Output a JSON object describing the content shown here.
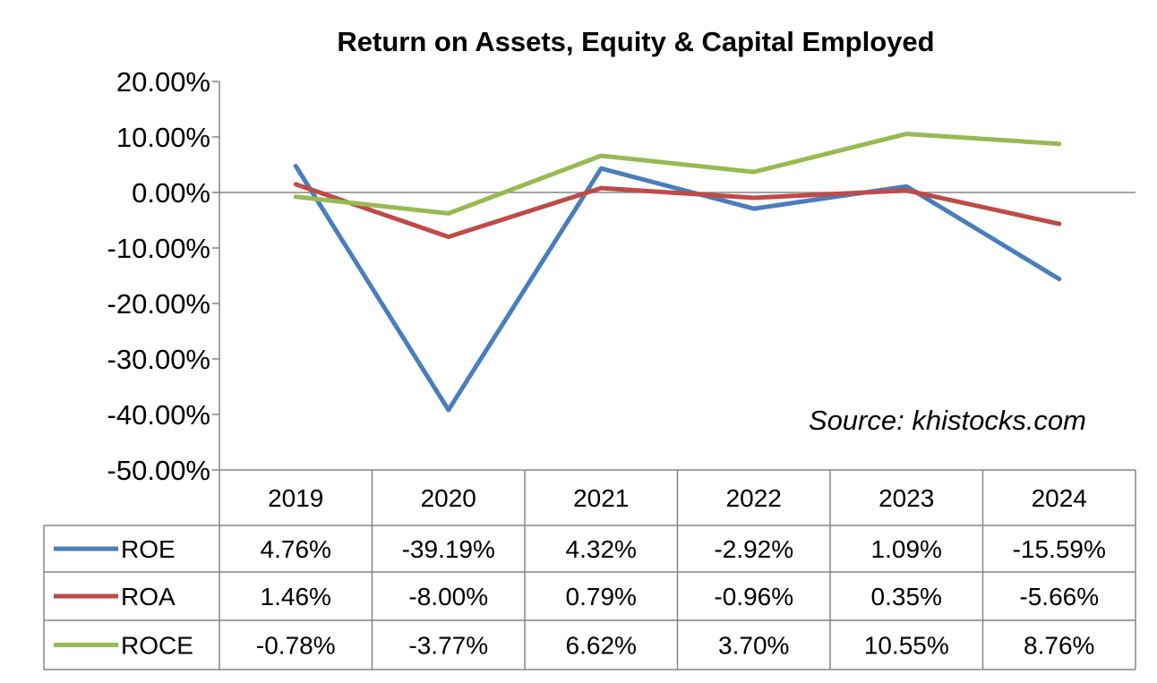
{
  "chart_data": {
    "type": "line",
    "title": "Return on Assets, Equity & Capital Employed",
    "annotation": "Source: khistocks.com",
    "categories": [
      "2019",
      "2020",
      "2021",
      "2022",
      "2023",
      "2024"
    ],
    "ylim": [
      -50,
      20
    ],
    "yticks": [
      20,
      10,
      0,
      -10,
      -20,
      -30,
      -40,
      -50
    ],
    "ytick_labels": [
      "20.00%",
      "10.00%",
      "0.00%",
      "-10.00%",
      "-20.00%",
      "-30.00%",
      "-40.00%",
      "-50.00%"
    ],
    "legend_placement": "data-table",
    "series": [
      {
        "name": "ROE",
        "color": "#4a7ebb",
        "values": [
          4.76,
          -39.19,
          4.32,
          -2.92,
          1.09,
          -15.59
        ],
        "labels": [
          "4.76%",
          "-39.19%",
          "4.32%",
          "-2.92%",
          "1.09%",
          "-15.59%"
        ]
      },
      {
        "name": "ROA",
        "color": "#be4b48",
        "values": [
          1.46,
          -8.0,
          0.79,
          -0.96,
          0.35,
          -5.66
        ],
        "labels": [
          "1.46%",
          "-8.00%",
          "0.79%",
          "-0.96%",
          "0.35%",
          "-5.66%"
        ]
      },
      {
        "name": "ROCE",
        "color": "#98b954",
        "values": [
          -0.78,
          -3.77,
          6.62,
          3.7,
          10.55,
          8.76
        ],
        "labels": [
          "-0.78%",
          "-3.77%",
          "6.62%",
          "3.70%",
          "10.55%",
          "8.76%"
        ]
      }
    ]
  }
}
